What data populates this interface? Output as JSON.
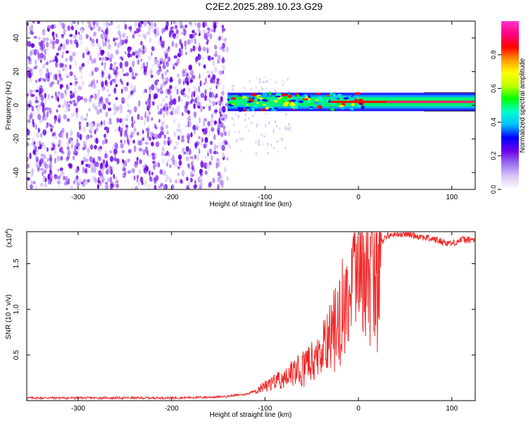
{
  "title": "C2E2.2025.289.10.23.G29",
  "chart_data": [
    {
      "type": "heatmap",
      "name": "spectrogram",
      "xlabel": "Height of straight line (km)",
      "ylabel": "Frequency (Hz)",
      "xlim": [
        -355,
        125
      ],
      "ylim": [
        -50,
        50
      ],
      "xticks": [
        -300,
        -200,
        -100,
        0,
        100
      ],
      "xtick_labels": [
        "-300",
        "-200",
        "-100",
        "0",
        "100"
      ],
      "yticks": [
        -40,
        -20,
        0,
        20,
        40
      ],
      "ytick_labels": [
        "-40",
        "-20",
        "0",
        "20",
        "40"
      ],
      "colorbar": {
        "label": "Normalized spectral amplitude",
        "range": [
          0,
          1
        ],
        "ticks": [
          0.0,
          0.2,
          0.4,
          0.6,
          0.8
        ],
        "tick_labels": [
          "0.0",
          "0.2",
          "0.4",
          "0.6",
          "0.8"
        ],
        "colors": [
          "#ffffff",
          "#d9c8f5",
          "#9b6ef0",
          "#6a00e8",
          "#0000ff",
          "#00bfff",
          "#00ffcc",
          "#00ff00",
          "#bfff00",
          "#ffff00",
          "#ff9900",
          "#ff0000",
          "#ff0080",
          "#ff33cc"
        ]
      },
      "signal_band": {
        "x_start": -140,
        "x_end": 125,
        "freq_center": 2,
        "freq_halfwidth": 2.5
      },
      "noise_region": {
        "x_start": -355,
        "x_end": -140
      }
    },
    {
      "type": "line",
      "name": "snr",
      "xlabel": "Height of straight line (km)",
      "ylabel": "SNR (10 * v/v)",
      "scale_label": "(x10",
      "scale_exponent": "4",
      "xlim": [
        -355,
        125
      ],
      "ylim": [
        0,
        1.85
      ],
      "xticks": [
        -300,
        -200,
        -100,
        0,
        100
      ],
      "xtick_labels": [
        "-300",
        "-200",
        "-100",
        "0",
        "100"
      ],
      "yticks": [
        0.5,
        1.0,
        1.5
      ],
      "ytick_labels": [
        "0.5",
        "1.0",
        "1.5"
      ],
      "series": [
        {
          "name": "SNR",
          "color": "#ee2a2a",
          "x": [
            -355,
            -300,
            -250,
            -200,
            -150,
            -120,
            -100,
            -90,
            -80,
            -70,
            -60,
            -50,
            -40,
            -30,
            -20,
            -15,
            -10,
            -5,
            0,
            5,
            10,
            15,
            20,
            25,
            30,
            40,
            50,
            60,
            70,
            80,
            90,
            100,
            110,
            125
          ],
          "y": [
            0.03,
            0.03,
            0.03,
            0.03,
            0.04,
            0.07,
            0.16,
            0.2,
            0.24,
            0.3,
            0.34,
            0.42,
            0.52,
            0.68,
            0.9,
            1.05,
            1.2,
            1.3,
            1.4,
            1.48,
            1.55,
            1.62,
            1.68,
            1.75,
            1.8,
            1.83,
            1.83,
            1.81,
            1.79,
            1.77,
            1.74,
            1.72,
            1.76,
            1.76
          ]
        }
      ]
    }
  ]
}
